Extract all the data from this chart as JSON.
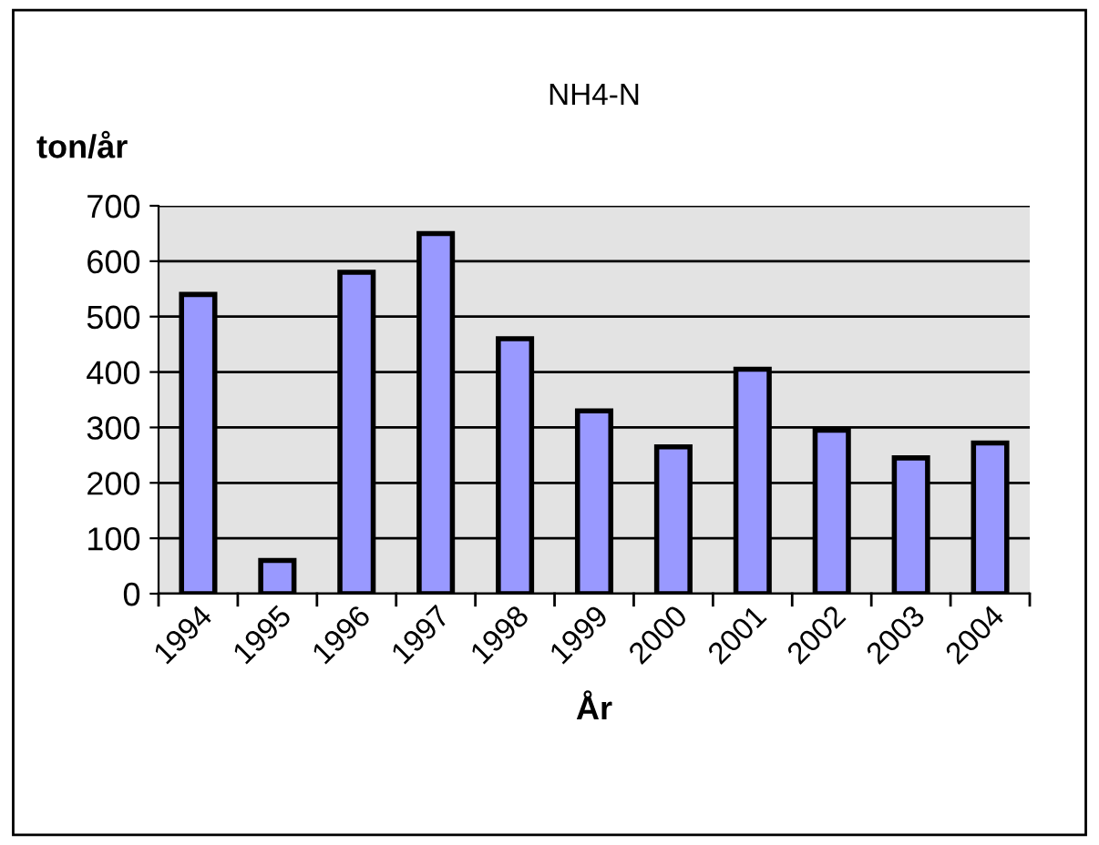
{
  "chart_data": {
    "type": "bar",
    "title": "NH4-N",
    "xlabel": "År",
    "ylabel": "ton/år",
    "categories": [
      "1994",
      "1995",
      "1996",
      "1997",
      "1998",
      "1999",
      "2000",
      "2001",
      "2002",
      "2003",
      "2004"
    ],
    "values": [
      540,
      60,
      580,
      650,
      460,
      330,
      265,
      405,
      295,
      245,
      272
    ],
    "color": "#9999ff",
    "ylim": [
      0,
      700
    ],
    "yticks": [
      0,
      100,
      200,
      300,
      400,
      500,
      600,
      700
    ],
    "grid": "y",
    "legend": false
  }
}
